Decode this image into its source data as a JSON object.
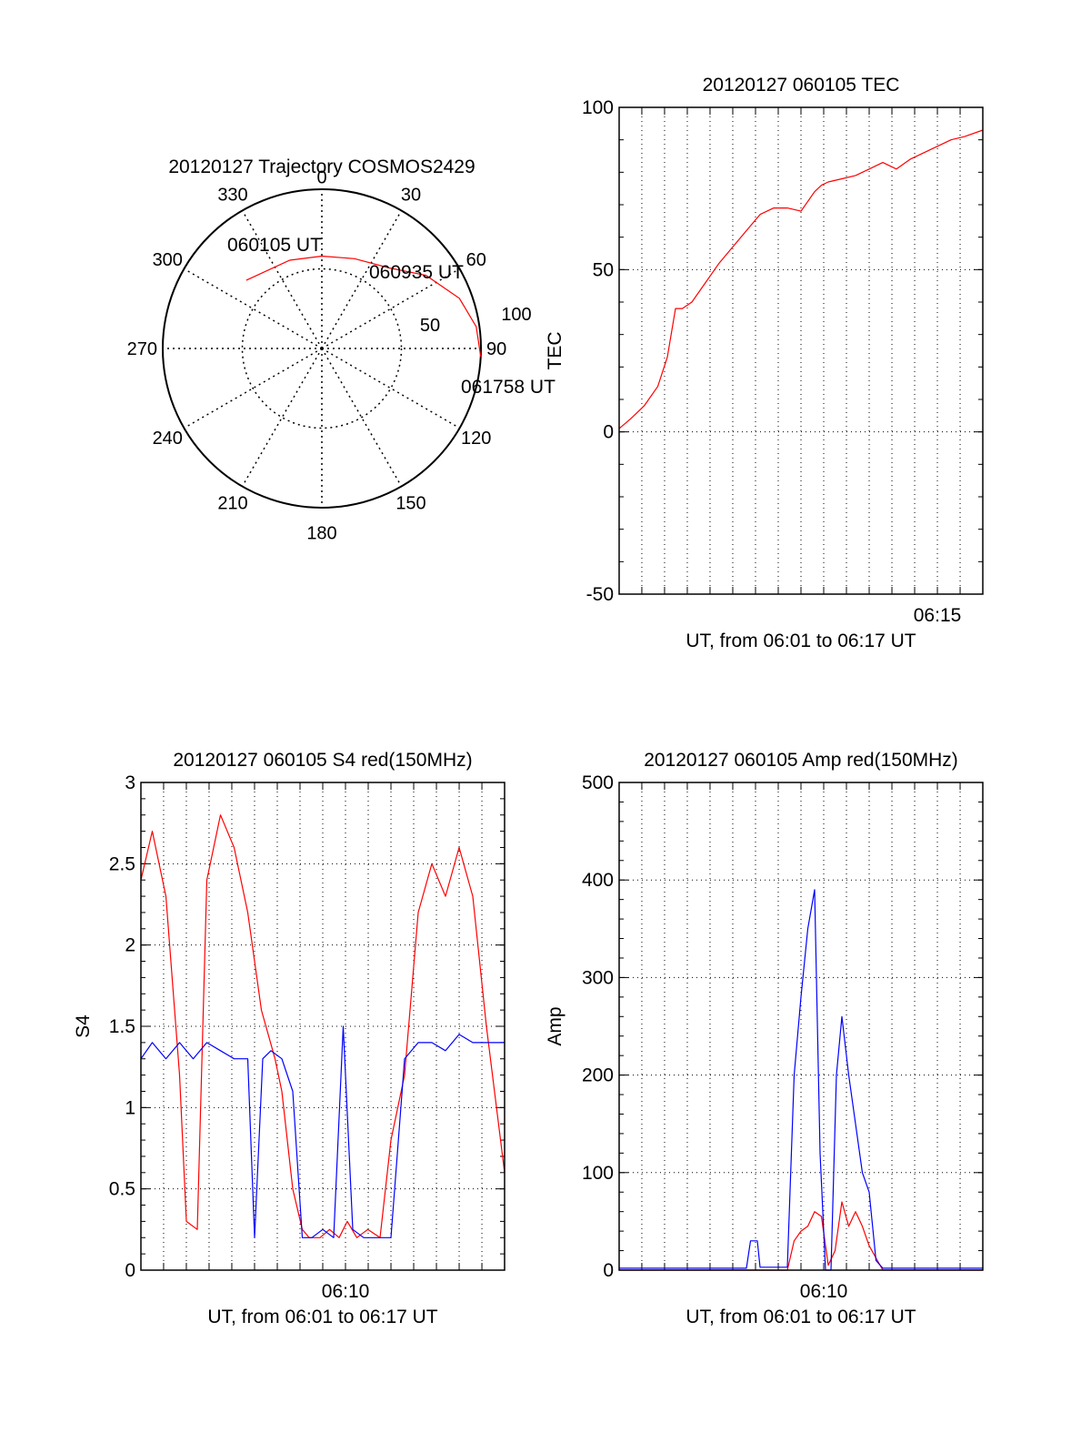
{
  "chart_data": [
    {
      "panel": "trajectory",
      "type": "polar",
      "title": "20120127 Trajectory COSMOS2429",
      "azimuth_labels": [
        "0",
        "30",
        "60",
        "90",
        "120",
        "150",
        "180",
        "210",
        "240",
        "270",
        "300",
        "330"
      ],
      "radial_labels": [
        "50",
        "100"
      ],
      "elevation_ticks": [
        50,
        100
      ],
      "track": {
        "color": "#ff0000",
        "points_az_r": [
          [
            -48,
            64
          ],
          [
            -20,
            59
          ],
          [
            0,
            58
          ],
          [
            20,
            60
          ],
          [
            40,
            66
          ],
          [
            55,
            80
          ],
          [
            70,
            92
          ],
          [
            82,
            98
          ],
          [
            93,
            100
          ]
        ]
      },
      "time_marks": [
        {
          "label": "060105 UT",
          "az": -48,
          "r": 64
        },
        {
          "label": "060935 UT",
          "az": 55,
          "r": 80
        },
        {
          "label": "061758 UT",
          "az": 93,
          "r": 100
        }
      ]
    },
    {
      "panel": "tec",
      "type": "line",
      "title": "20120127 060105 TEC",
      "xlabel": "UT, from 06:01 to 06:17 UT",
      "ylabel": "TEC",
      "xlim": [
        6.0167,
        6.2833
      ],
      "ylim": [
        -50,
        100
      ],
      "yticks": [
        -50,
        0,
        50,
        100
      ],
      "xtick_labels": [
        {
          "t": 6.25,
          "label": "06:15"
        }
      ],
      "grid": true,
      "series": [
        {
          "color": "#ff0000",
          "x": [
            6.0167,
            6.025,
            6.035,
            6.045,
            6.052,
            6.058,
            6.063,
            6.07,
            6.08,
            6.09,
            6.1,
            6.11,
            6.12,
            6.13,
            6.14,
            6.15,
            6.16,
            6.165,
            6.17,
            6.18,
            6.19,
            6.2,
            6.21,
            6.22,
            6.23,
            6.24,
            6.25,
            6.26,
            6.27,
            6.2833
          ],
          "y": [
            1,
            4,
            8,
            14,
            23,
            38,
            38,
            40,
            46,
            52,
            57,
            62,
            67,
            69,
            69,
            68,
            74,
            76,
            77,
            78,
            79,
            81,
            83,
            81,
            84,
            86,
            88,
            90,
            91,
            93
          ]
        }
      ]
    },
    {
      "panel": "s4",
      "type": "line",
      "title": "20120127 060105 S4 red(150MHz)",
      "xlabel": "UT, from 06:01 to 06:17 UT",
      "ylabel": "S4",
      "xlim": [
        6.0167,
        6.2833
      ],
      "ylim": [
        0,
        3
      ],
      "yticks": [
        0,
        0.5,
        1,
        1.5,
        2,
        2.5,
        3
      ],
      "ytick_labels": [
        "0",
        "0.5",
        "1",
        "1.5",
        "2",
        "2.5",
        "3"
      ],
      "xtick_labels": [
        {
          "t": 6.1667,
          "label": "06:10"
        }
      ],
      "grid": true,
      "series": [
        {
          "color": "#ff0000",
          "x": [
            6.0167,
            6.025,
            6.035,
            6.045,
            6.05,
            6.058,
            6.065,
            6.075,
            6.085,
            6.095,
            6.105,
            6.115,
            6.12,
            6.128,
            6.135,
            6.14,
            6.148,
            6.155,
            6.162,
            6.168,
            6.175,
            6.183,
            6.192,
            6.2,
            6.21,
            6.22,
            6.23,
            6.24,
            6.25,
            6.26,
            6.27,
            6.2833
          ],
          "y": [
            2.4,
            2.7,
            2.3,
            1.2,
            0.3,
            0.25,
            2.4,
            2.8,
            2.6,
            2.2,
            1.6,
            1.3,
            1.1,
            0.5,
            0.25,
            0.2,
            0.2,
            0.25,
            0.2,
            0.3,
            0.2,
            0.25,
            0.2,
            0.8,
            1.2,
            2.2,
            2.5,
            2.3,
            2.6,
            2.3,
            1.5,
            0.6
          ]
        },
        {
          "color": "#0000ff",
          "x": [
            6.0167,
            6.025,
            6.035,
            6.045,
            6.055,
            6.065,
            6.075,
            6.085,
            6.095,
            6.1,
            6.106,
            6.112,
            6.12,
            6.128,
            6.135,
            6.142,
            6.15,
            6.158,
            6.165,
            6.172,
            6.18,
            6.19,
            6.2,
            6.21,
            6.22,
            6.23,
            6.24,
            6.25,
            6.26,
            6.27,
            6.2833
          ],
          "y": [
            1.3,
            1.4,
            1.3,
            1.4,
            1.3,
            1.4,
            1.35,
            1.3,
            1.3,
            0.2,
            1.3,
            1.35,
            1.3,
            1.1,
            0.2,
            0.2,
            0.25,
            0.2,
            1.5,
            0.25,
            0.2,
            0.2,
            0.2,
            1.3,
            1.4,
            1.4,
            1.35,
            1.45,
            1.4,
            1.4,
            1.4
          ]
        }
      ]
    },
    {
      "panel": "amp",
      "type": "line",
      "title": "20120127 060105 Amp red(150MHz)",
      "xlabel": "UT, from 06:01 to 06:17 UT",
      "ylabel": "Amp",
      "xlim": [
        6.0167,
        6.2833
      ],
      "ylim": [
        0,
        500
      ],
      "yticks": [
        0,
        100,
        200,
        300,
        400,
        500
      ],
      "xtick_labels": [
        {
          "t": 6.1667,
          "label": "06:10"
        }
      ],
      "grid": true,
      "series": [
        {
          "color": "#ff0000",
          "x": [
            6.0167,
            6.115,
            6.125,
            6.135,
            6.14,
            6.145,
            6.15,
            6.155,
            6.16,
            6.165,
            6.17,
            6.175,
            6.18,
            6.185,
            6.19,
            6.195,
            6.2,
            6.21,
            6.2833
          ],
          "y": [
            0,
            0,
            0,
            0,
            0,
            30,
            40,
            45,
            60,
            55,
            5,
            20,
            70,
            45,
            60,
            45,
            25,
            0,
            0
          ]
        },
        {
          "color": "#0000ff",
          "x": [
            6.0167,
            6.11,
            6.113,
            6.118,
            6.12,
            6.14,
            6.145,
            6.15,
            6.155,
            6.16,
            6.164,
            6.168,
            6.172,
            6.176,
            6.18,
            6.185,
            6.19,
            6.195,
            6.2,
            6.205,
            6.21,
            6.2833
          ],
          "y": [
            2,
            2,
            30,
            30,
            3,
            3,
            200,
            280,
            350,
            390,
            120,
            0,
            0,
            200,
            260,
            200,
            150,
            100,
            80,
            10,
            2,
            2
          ]
        }
      ]
    }
  ]
}
